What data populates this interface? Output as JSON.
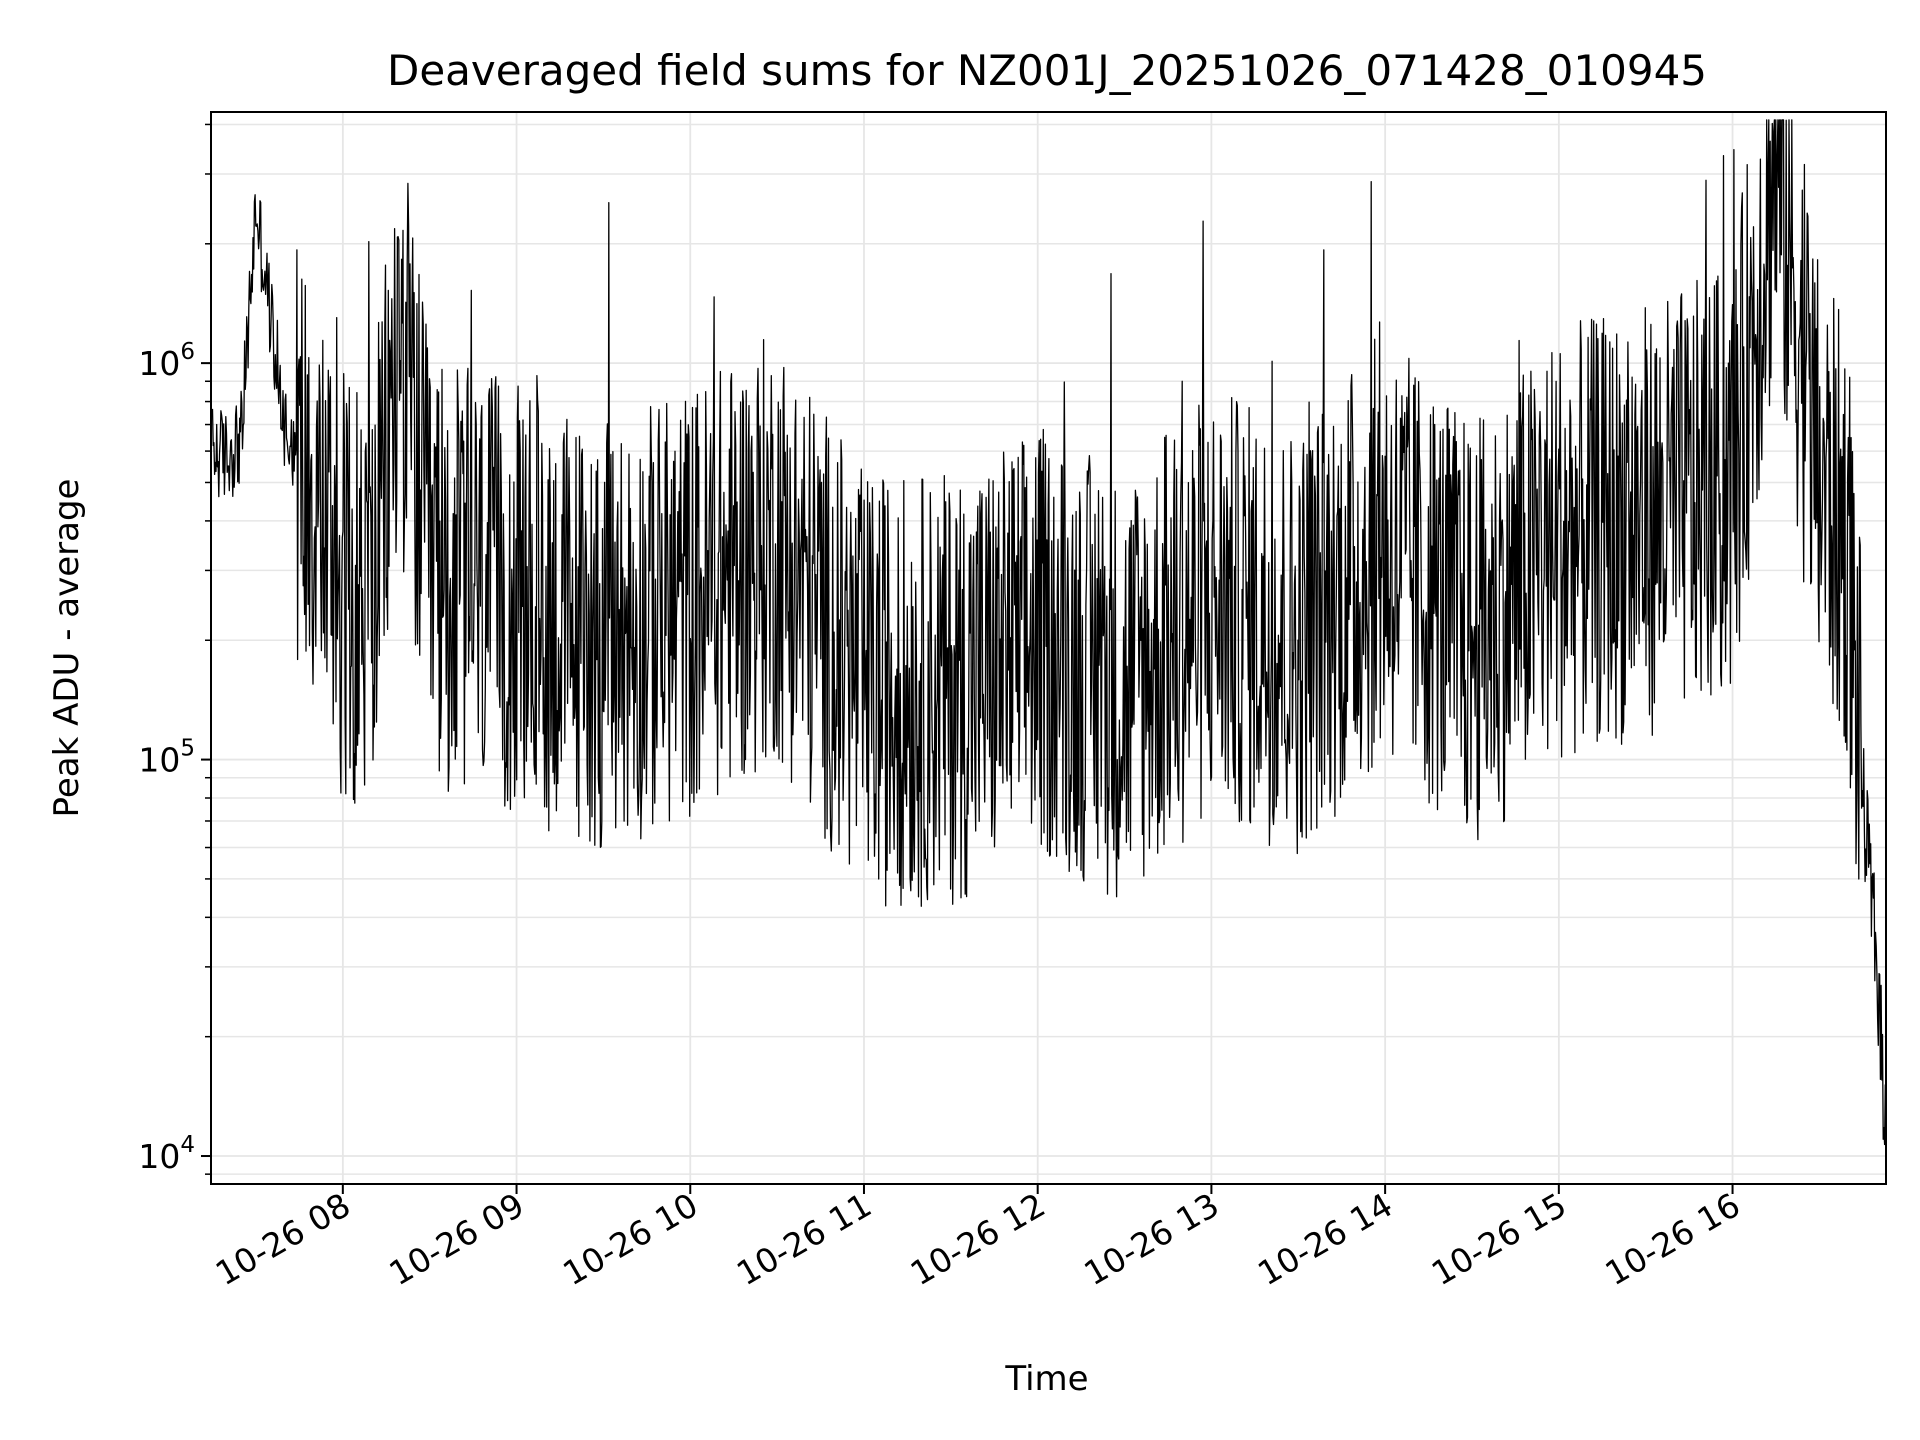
{
  "chart_data": {
    "type": "line",
    "title": "Deaveraged field sums for NZ001J_20251026_071428_010945",
    "xlabel": "Time",
    "ylabel": "Peak ADU - average",
    "y_scale": "log",
    "ylim": [
      8500,
      4300000
    ],
    "xlim": [
      "2025-10-26 07:14:28",
      "2025-10-26 16:53:00"
    ],
    "grid": true,
    "line_color": "#000000",
    "grid_color": "#e6e6e6",
    "x_ticks": [
      {
        "t": "2025-10-26 08:00",
        "label": "10-26 08"
      },
      {
        "t": "2025-10-26 09:00",
        "label": "10-26 09"
      },
      {
        "t": "2025-10-26 10:00",
        "label": "10-26 10"
      },
      {
        "t": "2025-10-26 11:00",
        "label": "10-26 11"
      },
      {
        "t": "2025-10-26 12:00",
        "label": "10-26 12"
      },
      {
        "t": "2025-10-26 13:00",
        "label": "10-26 13"
      },
      {
        "t": "2025-10-26 14:00",
        "label": "10-26 14"
      },
      {
        "t": "2025-10-26 15:00",
        "label": "10-26 15"
      },
      {
        "t": "2025-10-26 16:00",
        "label": "10-26 16"
      }
    ],
    "y_ticks": [
      {
        "value": 10000,
        "base": "10",
        "exp": "4"
      },
      {
        "value": 100000,
        "base": "10",
        "exp": "5"
      },
      {
        "value": 1000000,
        "base": "10",
        "exp": "6"
      }
    ],
    "series": [
      {
        "x": [
          "2025-10-26 07:15",
          "2025-10-26 07:20",
          "2025-10-26 07:25",
          "2025-10-26 07:30",
          "2025-10-26 07:40",
          "2025-10-26 07:50",
          "2025-10-26 08:00",
          "2025-10-26 08:10",
          "2025-10-26 08:20",
          "2025-10-26 08:30",
          "2025-10-26 09:00",
          "2025-10-26 09:30",
          "2025-10-26 10:00",
          "2025-10-26 10:30",
          "2025-10-26 11:00",
          "2025-10-26 11:30",
          "2025-10-26 12:00",
          "2025-10-26 12:30",
          "2025-10-26 13:00",
          "2025-10-26 13:30",
          "2025-10-26 14:00",
          "2025-10-26 14:30",
          "2025-10-26 15:00",
          "2025-10-26 15:30",
          "2025-10-26 16:00",
          "2025-10-26 16:15",
          "2025-10-26 16:30",
          "2025-10-26 16:40",
          "2025-10-26 16:45",
          "2025-10-26 16:50",
          "2025-10-26 16:53"
        ],
        "y": [
          600000,
          580000,
          650000,
          2500000,
          700000,
          500000,
          280000,
          250000,
          1200000,
          300000,
          250000,
          200000,
          250000,
          350000,
          150000,
          150000,
          200000,
          150000,
          250000,
          200000,
          350000,
          200000,
          350000,
          400000,
          500000,
          3300000,
          500000,
          350000,
          80000,
          30000,
          11000
        ]
      }
    ]
  }
}
